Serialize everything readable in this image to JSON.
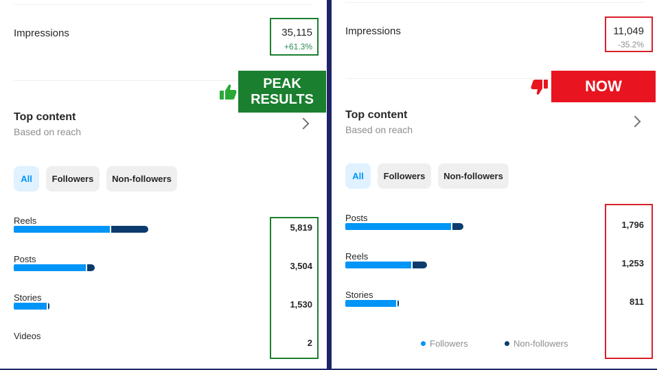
{
  "left": {
    "impressions": {
      "label": "Impressions",
      "value": "35,115",
      "change": "+61.3%",
      "change_color": "#2e8b57"
    },
    "banner": {
      "line1": "PEAK",
      "line2": "RESULTS",
      "color": "#1a7f2f"
    },
    "thumb_icon": "thumbs-up-icon",
    "top_content": {
      "title": "Top content",
      "subtitle": "Based on reach"
    },
    "chips": [
      {
        "label": "All",
        "active": true
      },
      {
        "label": "Followers",
        "active": false
      },
      {
        "label": "Non-followers",
        "active": false
      }
    ],
    "rows": [
      {
        "label": "Reels",
        "value": "5,819",
        "followers_fraction": 0.72,
        "nonfollowers_fraction": 0.28,
        "relative_total": 1.0
      },
      {
        "label": "Posts",
        "value": "3,504",
        "followers_fraction": 0.9,
        "nonfollowers_fraction": 0.1,
        "relative_total": 0.6
      },
      {
        "label": "Stories",
        "value": "1,530",
        "followers_fraction": 0.96,
        "nonfollowers_fraction": 0.04,
        "relative_total": 0.26
      },
      {
        "label": "Videos",
        "value": "2",
        "followers_fraction": 0,
        "nonfollowers_fraction": 0,
        "relative_total": 0
      }
    ]
  },
  "right": {
    "impressions": {
      "label": "Impressions",
      "value": "11,049",
      "change": "-35.2%",
      "change_color": "#8e8e8e"
    },
    "banner": {
      "text": "NOW",
      "color": "#e8141f"
    },
    "thumb_icon": "thumbs-down-icon",
    "top_content": {
      "title": "Top content",
      "subtitle": "Based on reach"
    },
    "chips": [
      {
        "label": "All",
        "active": true
      },
      {
        "label": "Followers",
        "active": false
      },
      {
        "label": "Non-followers",
        "active": false
      }
    ],
    "rows": [
      {
        "label": "Posts",
        "value": "1,796",
        "followers_fraction": 0.9,
        "nonfollowers_fraction": 0.1,
        "relative_total": 1.0
      },
      {
        "label": "Reels",
        "value": "1,253",
        "followers_fraction": 0.82,
        "nonfollowers_fraction": 0.18,
        "relative_total": 0.69
      },
      {
        "label": "Stories",
        "value": "811",
        "followers_fraction": 0.97,
        "nonfollowers_fraction": 0.03,
        "relative_total": 0.45
      }
    ],
    "legend": {
      "followers": "Followers",
      "nonfollowers": "Non-followers",
      "followers_color": "#0095f6",
      "nonfollowers_color": "#0c3c6e"
    }
  },
  "colors": {
    "followers": "#0095f6",
    "nonfollowers": "#0c3c6e",
    "highlight_green": "#1a7f2f",
    "highlight_red": "#d81f2a"
  }
}
